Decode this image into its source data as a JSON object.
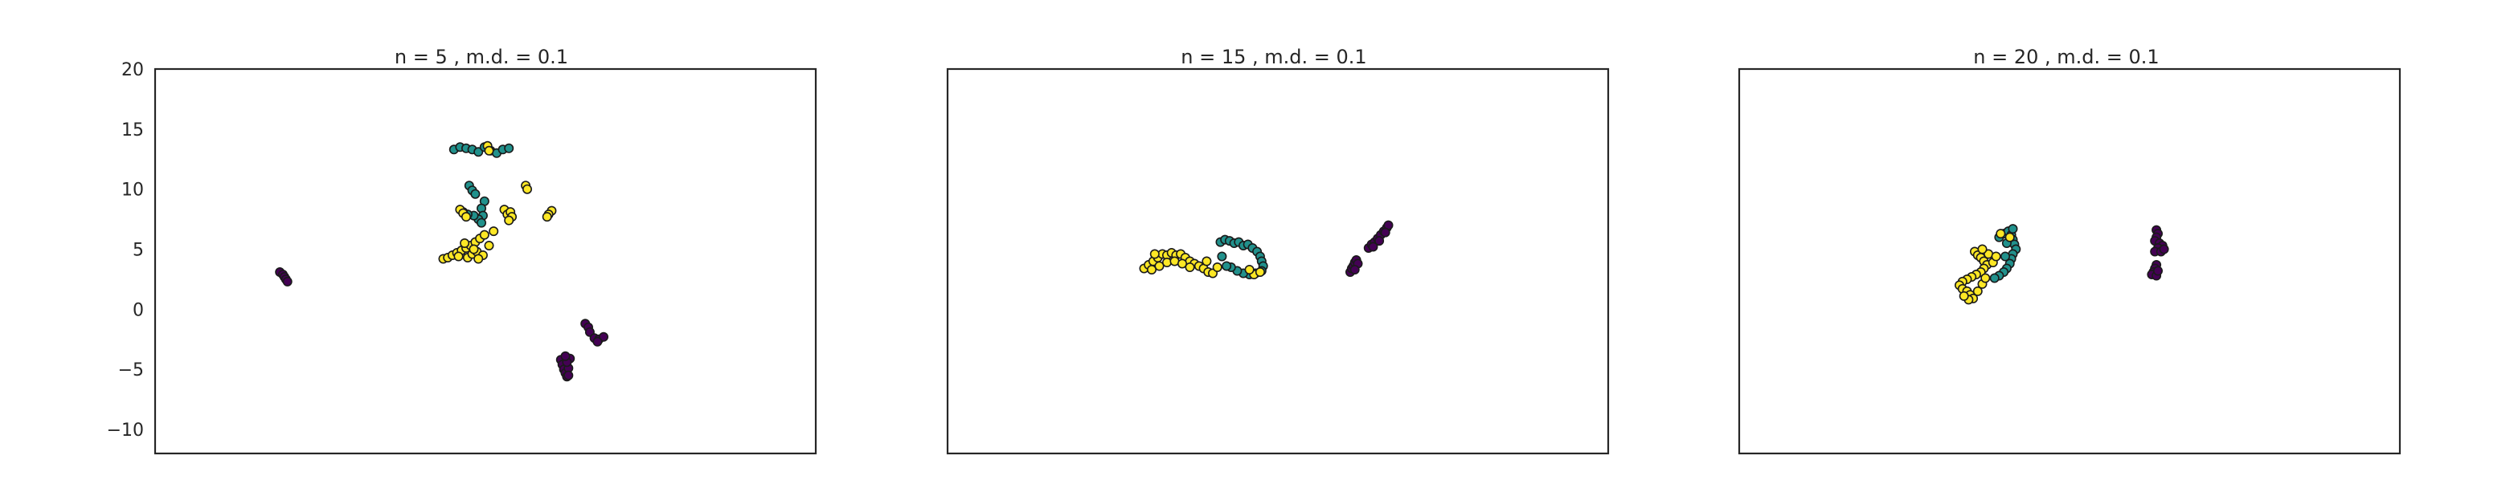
{
  "chart_data": [
    {
      "type": "scatter",
      "title": "n = 5 , m.d. = 0.1",
      "ylim": [
        -12,
        20
      ],
      "yticks": [
        -10,
        -5,
        0,
        5,
        10,
        15,
        20
      ],
      "ytick_labels": [
        "−10",
        "−5",
        "0",
        "5",
        "10",
        "15",
        "20"
      ],
      "xticks": [],
      "grid": false,
      "series": [
        {
          "color": "#440154",
          "points": [
            [
              -13.2,
              3.1
            ],
            [
              -13.0,
              2.9
            ],
            [
              -12.9,
              2.7
            ],
            [
              -12.8,
              2.5
            ],
            [
              -12.7,
              2.3
            ],
            [
              5.2,
              -4.2
            ],
            [
              5.3,
              -4.6
            ],
            [
              5.4,
              -5.0
            ],
            [
              5.5,
              -5.3
            ],
            [
              5.6,
              -5.6
            ],
            [
              5.7,
              -4.9
            ],
            [
              5.8,
              -4.1
            ],
            [
              5.6,
              -4.4
            ],
            [
              5.5,
              -3.9
            ],
            [
              5.7,
              -5.5
            ],
            [
              6.8,
              -1.2
            ],
            [
              7.0,
              -1.5
            ],
            [
              7.1,
              -1.9
            ],
            [
              7.4,
              -2.4
            ],
            [
              7.7,
              -2.5
            ],
            [
              8.0,
              -2.3
            ],
            [
              7.6,
              -2.7
            ]
          ]
        },
        {
          "color": "#21918c",
          "points": [
            [
              -1.8,
              13.3
            ],
            [
              -1.4,
              13.5
            ],
            [
              -1.0,
              13.4
            ],
            [
              -0.6,
              13.3
            ],
            [
              -0.2,
              13.1
            ],
            [
              0.2,
              13.5
            ],
            [
              0.6,
              13.2
            ],
            [
              1.0,
              13.0
            ],
            [
              1.4,
              13.3
            ],
            [
              1.8,
              13.4
            ],
            [
              -0.8,
              10.3
            ],
            [
              -0.6,
              9.9
            ],
            [
              -0.4,
              9.6
            ],
            [
              0.2,
              9.0
            ],
            [
              0.0,
              8.4
            ],
            [
              0.1,
              7.8
            ],
            [
              -0.2,
              7.5
            ],
            [
              -0.5,
              7.8
            ],
            [
              -0.9,
              7.9
            ],
            [
              -1.2,
              8.1
            ],
            [
              0.0,
              7.2
            ]
          ]
        },
        {
          "color": "#fde725",
          "points": [
            [
              0.4,
              13.6
            ],
            [
              0.5,
              13.2
            ],
            [
              2.9,
              10.3
            ],
            [
              3.0,
              10.0
            ],
            [
              -1.4,
              8.3
            ],
            [
              -1.2,
              8.0
            ],
            [
              -1.0,
              7.7
            ],
            [
              1.5,
              8.3
            ],
            [
              1.7,
              7.9
            ],
            [
              1.9,
              8.1
            ],
            [
              2.0,
              7.7
            ],
            [
              1.8,
              7.4
            ],
            [
              4.6,
              8.2
            ],
            [
              4.4,
              7.9
            ],
            [
              4.3,
              7.7
            ],
            [
              -2.5,
              4.2
            ],
            [
              -2.2,
              4.3
            ],
            [
              -1.9,
              4.5
            ],
            [
              -1.6,
              4.7
            ],
            [
              -1.3,
              4.9
            ],
            [
              -1.0,
              5.1
            ],
            [
              -0.7,
              5.3
            ],
            [
              -0.4,
              5.6
            ],
            [
              -0.1,
              5.9
            ],
            [
              0.2,
              6.2
            ],
            [
              -0.9,
              4.3
            ],
            [
              -0.6,
              4.6
            ],
            [
              -0.3,
              4.8
            ],
            [
              -1.5,
              4.4
            ],
            [
              0.1,
              4.5
            ],
            [
              -0.5,
              5.0
            ],
            [
              -1.1,
              5.5
            ],
            [
              0.5,
              5.3
            ],
            [
              -0.2,
              4.2
            ],
            [
              0.8,
              6.5
            ]
          ]
        }
      ]
    },
    {
      "type": "scatter",
      "title": "n = 15 , m.d. = 0.1",
      "ylim": [
        -12,
        20
      ],
      "yticks": [],
      "xticks": [],
      "grid": false,
      "series": [
        {
          "color": "#440154",
          "points": [
            [
              5.0,
              3.1
            ],
            [
              5.1,
              3.4
            ],
            [
              5.2,
              3.6
            ],
            [
              5.3,
              3.9
            ],
            [
              5.4,
              4.1
            ],
            [
              5.5,
              3.8
            ],
            [
              5.3,
              3.3
            ],
            [
              6.2,
              5.1
            ],
            [
              6.4,
              5.4
            ],
            [
              6.6,
              5.6
            ],
            [
              6.8,
              5.9
            ],
            [
              7.0,
              6.2
            ],
            [
              7.2,
              6.5
            ],
            [
              7.4,
              6.8
            ],
            [
              7.5,
              7.0
            ],
            [
              7.3,
              6.4
            ],
            [
              6.9,
              5.7
            ],
            [
              6.5,
              5.2
            ]
          ]
        },
        {
          "color": "#21918c",
          "points": [
            [
              -3.5,
              5.6
            ],
            [
              -3.2,
              5.8
            ],
            [
              -2.9,
              5.7
            ],
            [
              -2.6,
              5.5
            ],
            [
              -2.3,
              5.6
            ],
            [
              -2.0,
              5.3
            ],
            [
              -1.7,
              5.4
            ],
            [
              -1.4,
              5.1
            ],
            [
              -1.1,
              4.8
            ],
            [
              -0.9,
              4.4
            ],
            [
              -0.8,
              4.0
            ],
            [
              -0.7,
              3.6
            ],
            [
              -0.8,
              3.2
            ],
            [
              -1.2,
              3.0
            ],
            [
              -1.6,
              2.9
            ],
            [
              -2.0,
              3.0
            ],
            [
              -2.4,
              3.2
            ],
            [
              -2.8,
              3.5
            ],
            [
              -3.1,
              3.6
            ],
            [
              -3.4,
              4.4
            ]
          ]
        },
        {
          "color": "#fde725",
          "points": [
            [
              -8.5,
              3.4
            ],
            [
              -8.2,
              3.7
            ],
            [
              -7.9,
              4.0
            ],
            [
              -7.6,
              4.3
            ],
            [
              -7.3,
              4.6
            ],
            [
              -7.0,
              4.5
            ],
            [
              -6.7,
              4.7
            ],
            [
              -6.4,
              4.5
            ],
            [
              -6.1,
              4.6
            ],
            [
              -5.8,
              4.3
            ],
            [
              -5.5,
              4.0
            ],
            [
              -5.2,
              3.8
            ],
            [
              -4.9,
              3.6
            ],
            [
              -4.6,
              3.4
            ],
            [
              -4.3,
              3.1
            ],
            [
              -8.0,
              3.3
            ],
            [
              -7.5,
              3.6
            ],
            [
              -7.0,
              3.9
            ],
            [
              -6.5,
              4.0
            ],
            [
              -6.0,
              3.8
            ],
            [
              -5.5,
              3.5
            ],
            [
              -4.0,
              3.0
            ],
            [
              -3.7,
              3.5
            ],
            [
              -4.4,
              4.0
            ],
            [
              -7.8,
              4.6
            ],
            [
              -1.3,
              2.9
            ],
            [
              -1.6,
              3.3
            ],
            [
              -0.9,
              3.1
            ]
          ]
        }
      ]
    },
    {
      "type": "scatter",
      "title": "n = 20 , m.d. = 0.1",
      "ylim": [
        -12,
        20
      ],
      "yticks": [],
      "xticks": [],
      "grid": false,
      "series": [
        {
          "color": "#440154",
          "points": [
            [
              5.9,
              6.6
            ],
            [
              6.0,
              6.3
            ],
            [
              5.9,
              6.0
            ],
            [
              5.8,
              5.7
            ],
            [
              6.1,
              5.5
            ],
            [
              6.3,
              5.3
            ],
            [
              6.0,
              5.1
            ],
            [
              5.8,
              4.8
            ],
            [
              6.2,
              4.8
            ],
            [
              6.4,
              5.0
            ],
            [
              5.9,
              3.7
            ],
            [
              5.8,
              3.4
            ],
            [
              5.7,
              3.1
            ],
            [
              5.6,
              2.9
            ],
            [
              5.9,
              2.8
            ],
            [
              6.0,
              3.2
            ]
          ]
        },
        {
          "color": "#21918c",
          "points": [
            [
              -4.4,
              6.0
            ],
            [
              -4.1,
              6.3
            ],
            [
              -3.8,
              6.5
            ],
            [
              -3.6,
              6.2
            ],
            [
              -3.5,
              5.8
            ],
            [
              -3.4,
              5.4
            ],
            [
              -3.3,
              5.0
            ],
            [
              -3.5,
              4.6
            ],
            [
              -3.6,
              4.2
            ],
            [
              -3.7,
              3.8
            ],
            [
              -3.9,
              3.4
            ],
            [
              -4.1,
              3.1
            ],
            [
              -4.4,
              2.8
            ],
            [
              -4.7,
              2.6
            ],
            [
              -3.5,
              6.7
            ],
            [
              -4.0,
              4.4
            ],
            [
              -3.9,
              5.5
            ]
          ]
        },
        {
          "color": "#fde725",
          "points": [
            [
              -4.3,
              6.3
            ],
            [
              -3.7,
              6.0
            ],
            [
              -6.0,
              4.8
            ],
            [
              -5.8,
              4.5
            ],
            [
              -5.6,
              4.3
            ],
            [
              -5.4,
              4.0
            ],
            [
              -5.2,
              3.7
            ],
            [
              -5.4,
              3.4
            ],
            [
              -5.6,
              3.1
            ],
            [
              -5.9,
              2.9
            ],
            [
              -6.2,
              2.7
            ],
            [
              -6.5,
              2.5
            ],
            [
              -6.8,
              2.3
            ],
            [
              -7.0,
              2.0
            ],
            [
              -6.8,
              1.7
            ],
            [
              -6.5,
              1.5
            ],
            [
              -6.3,
              1.2
            ],
            [
              -6.1,
              0.9
            ],
            [
              -6.4,
              0.8
            ],
            [
              -6.7,
              1.1
            ],
            [
              -5.8,
              1.5
            ],
            [
              -5.5,
              2.1
            ],
            [
              -5.3,
              2.6
            ],
            [
              -4.8,
              3.9
            ],
            [
              -5.1,
              4.6
            ],
            [
              -5.5,
              5.0
            ],
            [
              -4.6,
              4.4
            ]
          ]
        }
      ]
    }
  ]
}
